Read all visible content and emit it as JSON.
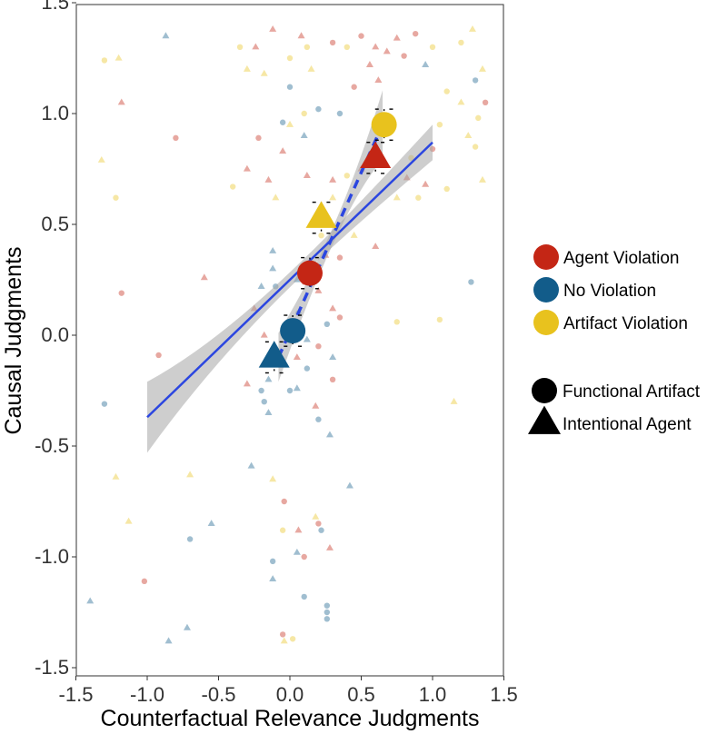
{
  "chart_data": {
    "type": "scatter",
    "xlabel": "Counterfactual Relevance Judgments",
    "ylabel": "Causal Judgments",
    "xlim": [
      -1.5,
      1.5
    ],
    "ylim": [
      -1.5,
      1.5
    ],
    "x_ticks": [
      -1.5,
      -1.0,
      -0.5,
      0.0,
      0.5,
      1.0,
      1.5
    ],
    "x_tick_labels": [
      "-1.5",
      "-1.0",
      "-0.5",
      "0.0",
      "0.5",
      "1.0",
      "1.5"
    ],
    "y_ticks": [
      -1.5,
      -1.0,
      -0.5,
      0.0,
      0.5,
      1.0,
      1.5
    ],
    "y_tick_labels": [
      "-1.5",
      "-1.0",
      "-0.5",
      "0.0",
      "0.5",
      "1.0",
      "1.5"
    ],
    "grid": false,
    "legend_position": "right",
    "colors": {
      "agent_violation": "#c42615",
      "no_violation": "#125c8a",
      "artifact_violation": "#e8c21e",
      "regression_line": "#2b46e0",
      "confidence_band": "#a6a6a6",
      "shape_key": "#000000"
    },
    "legend": {
      "color_entries": [
        {
          "label": "Agent Violation",
          "color_key": "agent_violation"
        },
        {
          "label": "No Violation",
          "color_key": "no_violation"
        },
        {
          "label": "Artifact Violation",
          "color_key": "artifact_violation"
        }
      ],
      "shape_entries": [
        {
          "label": "Functional Artifact",
          "shape": "circle"
        },
        {
          "label": "Intentional Agent",
          "shape": "triangle"
        }
      ]
    },
    "regression_fits": [
      {
        "style": "solid",
        "x": [
          -1.0,
          1.0
        ],
        "y": [
          -0.37,
          0.87
        ],
        "ci_lower": [
          -0.53,
          0.8
        ],
        "ci_upper": [
          -0.21,
          0.96
        ]
      },
      {
        "style": "dashed",
        "x": [
          -0.08,
          0.65
        ],
        "y": [
          -0.1,
          0.95
        ],
        "ci_lower": [
          -0.2,
          0.82
        ],
        "ci_upper": [
          0.02,
          1.13
        ]
      }
    ],
    "summary_points": [
      {
        "group": "agent_violation",
        "shape": "circle",
        "x": 0.14,
        "y": 0.28,
        "xerr": 0.05,
        "yerr": 0.07
      },
      {
        "group": "agent_violation",
        "shape": "triangle",
        "x": 0.6,
        "y": 0.8,
        "xerr": 0.05,
        "yerr": 0.07
      },
      {
        "group": "no_violation",
        "shape": "circle",
        "x": 0.02,
        "y": 0.02,
        "xerr": 0.05,
        "yerr": 0.07
      },
      {
        "group": "no_violation",
        "shape": "triangle",
        "x": -0.11,
        "y": -0.1,
        "xerr": 0.05,
        "yerr": 0.07
      },
      {
        "group": "artifact_violation",
        "shape": "circle",
        "x": 0.66,
        "y": 0.95,
        "xerr": 0.05,
        "yerr": 0.07
      },
      {
        "group": "artifact_violation",
        "shape": "triangle",
        "x": 0.22,
        "y": 0.53,
        "xerr": 0.05,
        "yerr": 0.07
      }
    ],
    "individual_points": [
      {
        "group": "agent_violation",
        "shape": "triangle",
        "x": -0.24,
        "y": 1.3
      },
      {
        "group": "agent_violation",
        "shape": "triangle",
        "x": -0.12,
        "y": 1.38
      },
      {
        "group": "agent_violation",
        "shape": "triangle",
        "x": 0.08,
        "y": 1.35
      },
      {
        "group": "agent_violation",
        "shape": "circle",
        "x": 0.3,
        "y": 1.32
      },
      {
        "group": "agent_violation",
        "shape": "circle",
        "x": 0.5,
        "y": 1.35
      },
      {
        "group": "agent_violation",
        "shape": "triangle",
        "x": 0.6,
        "y": 1.3
      },
      {
        "group": "agent_violation",
        "shape": "triangle",
        "x": 0.75,
        "y": 1.34
      },
      {
        "group": "agent_violation",
        "shape": "circle",
        "x": 0.88,
        "y": 1.36
      },
      {
        "group": "agent_violation",
        "shape": "triangle",
        "x": 0.68,
        "y": 1.28
      },
      {
        "group": "agent_violation",
        "shape": "circle",
        "x": 0.8,
        "y": 1.26
      },
      {
        "group": "agent_violation",
        "shape": "triangle",
        "x": 0.56,
        "y": 1.22
      },
      {
        "group": "agent_violation",
        "shape": "triangle",
        "x": 0.62,
        "y": 1.15
      },
      {
        "group": "agent_violation",
        "shape": "circle",
        "x": 0.45,
        "y": 1.12
      },
      {
        "group": "agent_violation",
        "shape": "triangle",
        "x": -1.18,
        "y": 1.05
      },
      {
        "group": "agent_violation",
        "shape": "circle",
        "x": -0.8,
        "y": 0.89
      },
      {
        "group": "agent_violation",
        "shape": "circle",
        "x": -0.22,
        "y": 0.89
      },
      {
        "group": "agent_violation",
        "shape": "triangle",
        "x": -0.05,
        "y": 0.83
      },
      {
        "group": "agent_violation",
        "shape": "triangle",
        "x": -0.3,
        "y": 0.75
      },
      {
        "group": "agent_violation",
        "shape": "triangle",
        "x": 0.12,
        "y": 0.72
      },
      {
        "group": "agent_violation",
        "shape": "triangle",
        "x": 0.3,
        "y": 0.7
      },
      {
        "group": "agent_violation",
        "shape": "triangle",
        "x": -0.15,
        "y": 0.7
      },
      {
        "group": "agent_violation",
        "shape": "triangle",
        "x": 0.5,
        "y": 0.75
      },
      {
        "group": "agent_violation",
        "shape": "triangle",
        "x": 0.82,
        "y": 0.71
      },
      {
        "group": "agent_violation",
        "shape": "triangle",
        "x": 0.95,
        "y": 0.68
      },
      {
        "group": "agent_violation",
        "shape": "circle",
        "x": 1.37,
        "y": 1.05
      },
      {
        "group": "agent_violation",
        "shape": "circle",
        "x": 1.0,
        "y": 0.84
      },
      {
        "group": "agent_violation",
        "shape": "circle",
        "x": -1.18,
        "y": 0.19
      },
      {
        "group": "agent_violation",
        "shape": "triangle",
        "x": -0.6,
        "y": 0.26
      },
      {
        "group": "agent_violation",
        "shape": "triangle",
        "x": -0.25,
        "y": 0.12
      },
      {
        "group": "agent_violation",
        "shape": "triangle",
        "x": -0.18,
        "y": 0.0
      },
      {
        "group": "agent_violation",
        "shape": "triangle",
        "x": -0.3,
        "y": -0.22
      },
      {
        "group": "agent_violation",
        "shape": "triangle",
        "x": 0.2,
        "y": 0.2
      },
      {
        "group": "agent_violation",
        "shape": "circle",
        "x": 0.35,
        "y": 0.35
      },
      {
        "group": "agent_violation",
        "shape": "triangle",
        "x": 0.25,
        "y": 0.36
      },
      {
        "group": "agent_violation",
        "shape": "circle",
        "x": 0.1,
        "y": 0.24
      },
      {
        "group": "agent_violation",
        "shape": "triangle",
        "x": 0.3,
        "y": 0.12
      },
      {
        "group": "agent_violation",
        "shape": "circle",
        "x": 0.35,
        "y": 0.08
      },
      {
        "group": "agent_violation",
        "shape": "circle",
        "x": 0.2,
        "y": -0.05
      },
      {
        "group": "agent_violation",
        "shape": "triangle",
        "x": 0.05,
        "y": -0.1
      },
      {
        "group": "agent_violation",
        "shape": "circle",
        "x": 0.3,
        "y": -0.2
      },
      {
        "group": "agent_violation",
        "shape": "triangle",
        "x": 0.18,
        "y": -0.32
      },
      {
        "group": "agent_violation",
        "shape": "triangle",
        "x": 0.6,
        "y": 0.4
      },
      {
        "group": "agent_violation",
        "shape": "circle",
        "x": -0.04,
        "y": -0.75
      },
      {
        "group": "agent_violation",
        "shape": "triangle",
        "x": 0.06,
        "y": -0.88
      },
      {
        "group": "agent_violation",
        "shape": "triangle",
        "x": 0.28,
        "y": -0.96
      },
      {
        "group": "agent_violation",
        "shape": "circle",
        "x": 0.1,
        "y": -1.0
      },
      {
        "group": "agent_violation",
        "shape": "circle",
        "x": 0.2,
        "y": -0.85
      },
      {
        "group": "agent_violation",
        "shape": "circle",
        "x": -1.02,
        "y": -1.11
      },
      {
        "group": "agent_violation",
        "shape": "circle",
        "x": -0.05,
        "y": -1.35
      },
      {
        "group": "agent_violation",
        "shape": "circle",
        "x": -0.92,
        "y": -0.09
      },
      {
        "group": "no_violation",
        "shape": "triangle",
        "x": -0.87,
        "y": 1.35
      },
      {
        "group": "no_violation",
        "shape": "circle",
        "x": 0.0,
        "y": 1.12
      },
      {
        "group": "no_violation",
        "shape": "circle",
        "x": 0.2,
        "y": 1.02
      },
      {
        "group": "no_violation",
        "shape": "circle",
        "x": 0.35,
        "y": 1.0
      },
      {
        "group": "no_violation",
        "shape": "triangle",
        "x": 0.1,
        "y": 0.9
      },
      {
        "group": "no_violation",
        "shape": "circle",
        "x": -0.05,
        "y": 0.96
      },
      {
        "group": "no_violation",
        "shape": "triangle",
        "x": 0.95,
        "y": 1.22
      },
      {
        "group": "no_violation",
        "shape": "circle",
        "x": 1.3,
        "y": 1.15
      },
      {
        "group": "no_violation",
        "shape": "circle",
        "x": 1.27,
        "y": 0.24
      },
      {
        "group": "no_violation",
        "shape": "triangle",
        "x": -0.12,
        "y": 0.38
      },
      {
        "group": "no_violation",
        "shape": "triangle",
        "x": -0.12,
        "y": 0.3
      },
      {
        "group": "no_violation",
        "shape": "circle",
        "x": -0.1,
        "y": 0.22
      },
      {
        "group": "no_violation",
        "shape": "triangle",
        "x": 0.05,
        "y": 0.25
      },
      {
        "group": "no_violation",
        "shape": "triangle",
        "x": -0.2,
        "y": 0.22
      },
      {
        "group": "no_violation",
        "shape": "circle",
        "x": 0.06,
        "y": 0.1
      },
      {
        "group": "no_violation",
        "shape": "triangle",
        "x": 0.12,
        "y": -0.02
      },
      {
        "group": "no_violation",
        "shape": "circle",
        "x": -0.05,
        "y": -0.12
      },
      {
        "group": "no_violation",
        "shape": "triangle",
        "x": -0.15,
        "y": -0.2
      },
      {
        "group": "no_violation",
        "shape": "circle",
        "x": -0.2,
        "y": -0.25
      },
      {
        "group": "no_violation",
        "shape": "circle",
        "x": -0.18,
        "y": -0.3
      },
      {
        "group": "no_violation",
        "shape": "circle",
        "x": 0.0,
        "y": -0.25
      },
      {
        "group": "no_violation",
        "shape": "triangle",
        "x": 0.05,
        "y": -0.24
      },
      {
        "group": "no_violation",
        "shape": "circle",
        "x": 0.12,
        "y": -0.15
      },
      {
        "group": "no_violation",
        "shape": "circle",
        "x": 0.2,
        "y": -0.38
      },
      {
        "group": "no_violation",
        "shape": "triangle",
        "x": -0.15,
        "y": -0.35
      },
      {
        "group": "no_violation",
        "shape": "circle",
        "x": 0.26,
        "y": 0.05
      },
      {
        "group": "no_violation",
        "shape": "triangle",
        "x": 0.3,
        "y": -0.1
      },
      {
        "group": "no_violation",
        "shape": "triangle",
        "x": 0.28,
        "y": -0.45
      },
      {
        "group": "no_violation",
        "shape": "circle",
        "x": -1.3,
        "y": -0.31
      },
      {
        "group": "no_violation",
        "shape": "triangle",
        "x": -0.27,
        "y": -0.59
      },
      {
        "group": "no_violation",
        "shape": "triangle",
        "x": 0.42,
        "y": -0.68
      },
      {
        "group": "no_violation",
        "shape": "triangle",
        "x": -0.55,
        "y": -0.85
      },
      {
        "group": "no_violation",
        "shape": "circle",
        "x": 0.22,
        "y": -0.88
      },
      {
        "group": "no_violation",
        "shape": "circle",
        "x": -0.7,
        "y": -0.92
      },
      {
        "group": "no_violation",
        "shape": "triangle",
        "x": 0.05,
        "y": -0.98
      },
      {
        "group": "no_violation",
        "shape": "circle",
        "x": -0.12,
        "y": -1.02
      },
      {
        "group": "no_violation",
        "shape": "triangle",
        "x": -0.12,
        "y": -1.1
      },
      {
        "group": "no_violation",
        "shape": "circle",
        "x": 0.1,
        "y": -1.18
      },
      {
        "group": "no_violation",
        "shape": "circle",
        "x": 0.26,
        "y": -1.22
      },
      {
        "group": "no_violation",
        "shape": "circle",
        "x": 0.26,
        "y": -1.25
      },
      {
        "group": "no_violation",
        "shape": "triangle",
        "x": -1.4,
        "y": -1.2
      },
      {
        "group": "no_violation",
        "shape": "triangle",
        "x": -0.72,
        "y": -1.32
      },
      {
        "group": "no_violation",
        "shape": "triangle",
        "x": -0.85,
        "y": -1.38
      },
      {
        "group": "no_violation",
        "shape": "circle",
        "x": 0.26,
        "y": -1.28
      },
      {
        "group": "artifact_violation",
        "shape": "circle",
        "x": -1.3,
        "y": 1.24
      },
      {
        "group": "artifact_violation",
        "shape": "triangle",
        "x": -1.2,
        "y": 1.25
      },
      {
        "group": "artifact_violation",
        "shape": "circle",
        "x": -0.35,
        "y": 1.3
      },
      {
        "group": "artifact_violation",
        "shape": "triangle",
        "x": -0.3,
        "y": 1.2
      },
      {
        "group": "artifact_violation",
        "shape": "triangle",
        "x": -0.18,
        "y": 1.18
      },
      {
        "group": "artifact_violation",
        "shape": "circle",
        "x": 0.0,
        "y": 1.25
      },
      {
        "group": "artifact_violation",
        "shape": "circle",
        "x": 0.12,
        "y": 1.3
      },
      {
        "group": "artifact_violation",
        "shape": "triangle",
        "x": 0.15,
        "y": 1.2
      },
      {
        "group": "artifact_violation",
        "shape": "circle",
        "x": 0.4,
        "y": 1.3
      },
      {
        "group": "artifact_violation",
        "shape": "circle",
        "x": 1.0,
        "y": 1.3
      },
      {
        "group": "artifact_violation",
        "shape": "circle",
        "x": 1.2,
        "y": 1.32
      },
      {
        "group": "artifact_violation",
        "shape": "triangle",
        "x": 1.28,
        "y": 1.38
      },
      {
        "group": "artifact_violation",
        "shape": "triangle",
        "x": 1.35,
        "y": 1.2
      },
      {
        "group": "artifact_violation",
        "shape": "circle",
        "x": 1.1,
        "y": 1.1
      },
      {
        "group": "artifact_violation",
        "shape": "triangle",
        "x": 1.2,
        "y": 1.05
      },
      {
        "group": "artifact_violation",
        "shape": "circle",
        "x": 1.32,
        "y": 0.98
      },
      {
        "group": "artifact_violation",
        "shape": "circle",
        "x": 1.05,
        "y": 0.95
      },
      {
        "group": "artifact_violation",
        "shape": "triangle",
        "x": 1.25,
        "y": 0.9
      },
      {
        "group": "artifact_violation",
        "shape": "circle",
        "x": 1.3,
        "y": 0.85
      },
      {
        "group": "artifact_violation",
        "shape": "triangle",
        "x": 1.35,
        "y": 0.7
      },
      {
        "group": "artifact_violation",
        "shape": "circle",
        "x": 0.85,
        "y": 0.8
      },
      {
        "group": "artifact_violation",
        "shape": "circle",
        "x": 0.9,
        "y": 0.62
      },
      {
        "group": "artifact_violation",
        "shape": "circle",
        "x": 1.1,
        "y": 0.66
      },
      {
        "group": "artifact_violation",
        "shape": "triangle",
        "x": 0.75,
        "y": 0.62
      },
      {
        "group": "artifact_violation",
        "shape": "circle",
        "x": 0.1,
        "y": 1.0
      },
      {
        "group": "artifact_violation",
        "shape": "triangle",
        "x": 0.0,
        "y": 0.95
      },
      {
        "group": "artifact_violation",
        "shape": "circle",
        "x": -0.4,
        "y": 0.67
      },
      {
        "group": "artifact_violation",
        "shape": "triangle",
        "x": -0.1,
        "y": 0.62
      },
      {
        "group": "artifact_violation",
        "shape": "triangle",
        "x": 0.3,
        "y": 0.62
      },
      {
        "group": "artifact_violation",
        "shape": "circle",
        "x": 0.4,
        "y": 0.72
      },
      {
        "group": "artifact_violation",
        "shape": "triangle",
        "x": -1.32,
        "y": 0.79
      },
      {
        "group": "artifact_violation",
        "shape": "circle",
        "x": -1.22,
        "y": 0.62
      },
      {
        "group": "artifact_violation",
        "shape": "triangle",
        "x": 0.45,
        "y": 0.45
      },
      {
        "group": "artifact_violation",
        "shape": "circle",
        "x": 0.22,
        "y": 0.45
      },
      {
        "group": "artifact_violation",
        "shape": "circle",
        "x": 0.75,
        "y": 0.06
      },
      {
        "group": "artifact_violation",
        "shape": "circle",
        "x": 1.05,
        "y": 0.07
      },
      {
        "group": "artifact_violation",
        "shape": "triangle",
        "x": 1.15,
        "y": -0.3
      },
      {
        "group": "artifact_violation",
        "shape": "triangle",
        "x": -1.22,
        "y": -0.64
      },
      {
        "group": "artifact_violation",
        "shape": "triangle",
        "x": -0.7,
        "y": -0.63
      },
      {
        "group": "artifact_violation",
        "shape": "triangle",
        "x": -0.12,
        "y": -0.65
      },
      {
        "group": "artifact_violation",
        "shape": "triangle",
        "x": -1.13,
        "y": -0.84
      },
      {
        "group": "artifact_violation",
        "shape": "triangle",
        "x": 0.18,
        "y": -0.82
      },
      {
        "group": "artifact_violation",
        "shape": "circle",
        "x": -0.05,
        "y": -0.88
      },
      {
        "group": "artifact_violation",
        "shape": "circle",
        "x": 0.02,
        "y": -1.37
      },
      {
        "group": "artifact_violation",
        "shape": "triangle",
        "x": -0.04,
        "y": -1.38
      }
    ]
  }
}
